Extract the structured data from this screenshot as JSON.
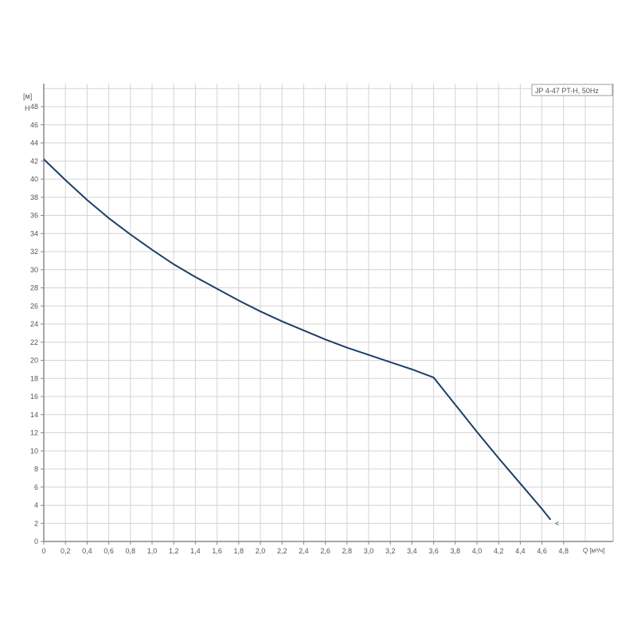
{
  "chart_data": {
    "type": "line",
    "title": "JP 4-47 PT-H, 50Hz",
    "xlabel": "Q [м³/ч]",
    "ylabel": "H",
    "yunit": "[м]",
    "xlim": [
      0,
      5.2
    ],
    "ylim": [
      0,
      50
    ],
    "grid": true,
    "legend": "top-right",
    "xticks": [
      "0",
      "0,2",
      "0,4",
      "0,6",
      "0,8",
      "1,0",
      "1,2",
      "1,4",
      "1,6",
      "1,8",
      "2,0",
      "2,2",
      "2,4",
      "2,6",
      "2,8",
      "3,0",
      "3,2",
      "3,4",
      "3,6",
      "3,8",
      "4,0",
      "4,2",
      "4,4",
      "4,6",
      "4,8"
    ],
    "yticks": [
      "0",
      "2",
      "4",
      "6",
      "8",
      "10",
      "12",
      "14",
      "16",
      "18",
      "20",
      "22",
      "24",
      "26",
      "28",
      "30",
      "32",
      "34",
      "36",
      "38",
      "40",
      "42",
      "44",
      "46",
      "48"
    ],
    "series": [
      {
        "color": "#1f3f66",
        "x": [
          0,
          0.2,
          0.4,
          0.6,
          0.8,
          1.0,
          1.2,
          1.4,
          1.6,
          1.8,
          2.0,
          2.2,
          2.4,
          2.6,
          2.8,
          3.0,
          3.2,
          3.4,
          3.6,
          3.8,
          4.0,
          4.2,
          4.4,
          4.6,
          4.68
        ],
        "y": [
          42.2,
          39.9,
          37.7,
          35.7,
          33.9,
          32.2,
          30.6,
          29.2,
          27.9,
          26.6,
          25.4,
          24.3,
          23.3,
          22.3,
          21.4,
          20.6,
          19.8,
          19.0,
          18.1,
          15.1,
          12.1,
          9.2,
          6.4,
          3.6,
          2.4
        ]
      }
    ],
    "marker": {
      "x": 4.75,
      "y": 2.0,
      "symbol": "<"
    }
  }
}
